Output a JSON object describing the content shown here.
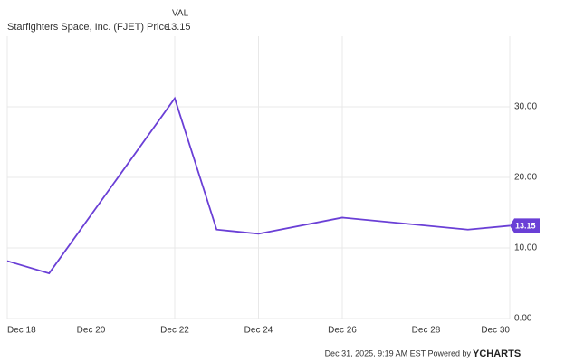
{
  "chart_data": {
    "type": "line",
    "legend_header": "VAL",
    "series": [
      {
        "name": "Starfighters Space, Inc. (FJET) Price",
        "color": "#6a3fd6",
        "values": [
          8.15,
          6.4,
          31.2,
          12.6,
          12.0,
          14.3,
          12.6,
          13.15
        ]
      }
    ],
    "x": [
      "Dec 18",
      "Dec 19",
      "Dec 22",
      "Dec 23",
      "Dec 24",
      "Dec 26",
      "Dec 29",
      "Dec 30"
    ],
    "xlim": [
      "Dec 18",
      "Dec 30"
    ],
    "xticks": [
      "Dec 18",
      "Dec 20",
      "Dec 22",
      "Dec 24",
      "Dec 26",
      "Dec 28",
      "Dec 30"
    ],
    "ylim": [
      0,
      40
    ],
    "yticks": [
      {
        "value": 0,
        "label": "0.00"
      },
      {
        "value": 10,
        "label": "10.00"
      },
      {
        "value": 20,
        "label": "20.00"
      },
      {
        "value": 30,
        "label": "30.00"
      }
    ],
    "grid": true,
    "footer": "Dec 31, 2025, 9:19 AM EST Powered by",
    "brand": "YCHARTS"
  }
}
